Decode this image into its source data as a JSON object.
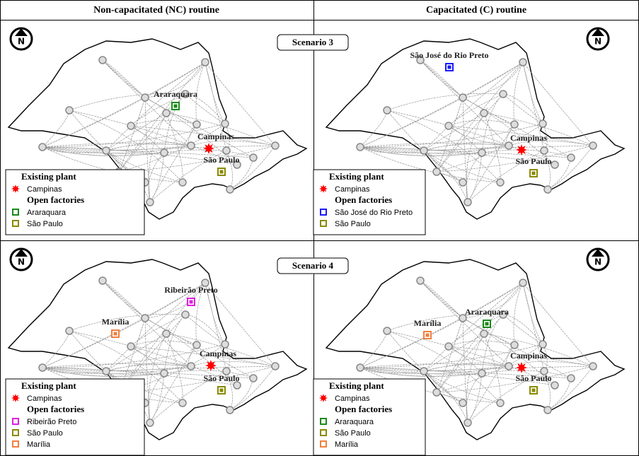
{
  "header": {
    "columns": [
      "Non-capacitated (NC) routine",
      "Capacitated (C) routine"
    ]
  },
  "north_symbol": "N",
  "scenarios": [
    {
      "label": "Scenario 3",
      "panels": [
        {
          "existing_plant": {
            "title": "Existing plant",
            "name": "Campinas",
            "color": "#ff0000"
          },
          "open_factories": {
            "title": "Open factories",
            "items": [
              {
                "name": "Araraquara",
                "color": "#1a8a1a"
              },
              {
                "name": "São Paulo",
                "color": "#8a8a00"
              }
            ]
          }
        },
        {
          "existing_plant": {
            "title": "Existing plant",
            "name": "Campinas",
            "color": "#ff0000"
          },
          "open_factories": {
            "title": "Open factories",
            "items": [
              {
                "name": "São José do Rio Preto",
                "color": "#1a1aff"
              },
              {
                "name": "São Paulo",
                "color": "#8a8a00"
              }
            ]
          }
        }
      ]
    },
    {
      "label": "Scenario 4",
      "panels": [
        {
          "existing_plant": {
            "title": "Existing plant",
            "name": "Campinas",
            "color": "#ff0000"
          },
          "open_factories": {
            "title": "Open factories",
            "items": [
              {
                "name": "Ribeirão Preto",
                "color": "#e020e0"
              },
              {
                "name": "São Paulo",
                "color": "#8a8a00"
              },
              {
                "name": "Marília",
                "color": "#f08040"
              }
            ]
          }
        },
        {
          "existing_plant": {
            "title": "Existing plant",
            "name": "Campinas",
            "color": "#ff0000"
          },
          "open_factories": {
            "title": "Open factories",
            "items": [
              {
                "name": "Araraquara",
                "color": "#1a8a1a"
              },
              {
                "name": "São Paulo",
                "color": "#8a8a00"
              },
              {
                "name": "Marília",
                "color": "#f08040"
              }
            ]
          }
        }
      ]
    }
  ]
}
